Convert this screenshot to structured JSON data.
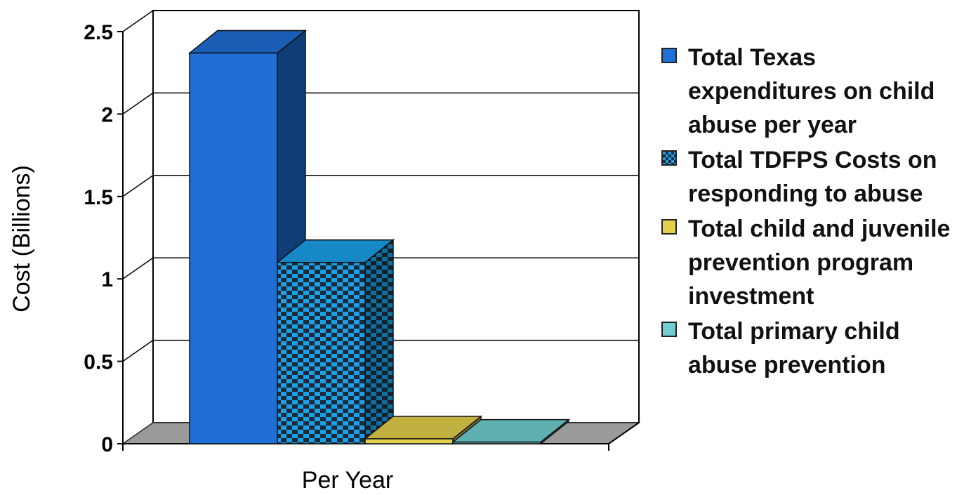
{
  "chart_data": {
    "type": "bar",
    "style": "3d-clustered-column",
    "categories": [
      "Per Year"
    ],
    "xlabel": "Per Year",
    "ylabel": "Cost (Billions)",
    "ylim": [
      0,
      2.5
    ],
    "yticks": [
      "0",
      "0.5",
      "1",
      "1.5",
      "2",
      "2.5"
    ],
    "grid": true,
    "legend_position": "right",
    "series": [
      {
        "name": "Total Texas expenditures on child abuse per year",
        "values": [
          2.37
        ],
        "color": "#1f6fd6",
        "pattern": "solid"
      },
      {
        "name": "Total TDFPS Costs on responding to abuse",
        "values": [
          1.1
        ],
        "color": "#1aa0e8",
        "pattern": "checker"
      },
      {
        "name": "Total child and juvenile prevention program investment",
        "values": [
          0.03
        ],
        "color": "#e3d04c",
        "pattern": "solid"
      },
      {
        "name": "Total primary child abuse prevention",
        "values": [
          0.01
        ],
        "color": "#6fcfd0",
        "pattern": "solid"
      }
    ]
  }
}
